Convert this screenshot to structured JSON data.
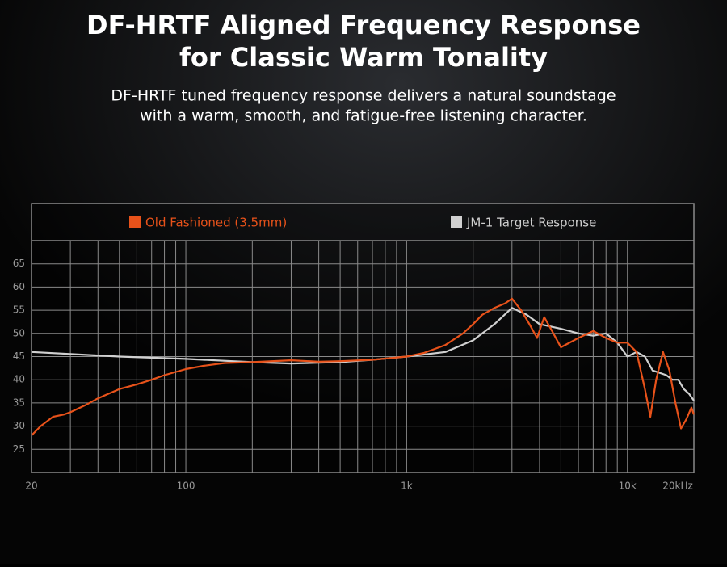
{
  "title": "DF-HRTF Aligned Frequency Response",
  "title_line2": "for Classic Warm Tonality",
  "subtitle": "DF-HRTF tuned frequency response delivers a natural soundstage",
  "subtitle_line2": "with a warm, smooth, and fatigue-free listening character.",
  "chart_data": {
    "type": "line",
    "log_x": true,
    "grid": true,
    "xlim": [
      20,
      20000
    ],
    "ylim": [
      20,
      70
    ],
    "xticks": [
      20,
      100,
      {
        "value": 1000,
        "label": "1k"
      },
      {
        "value": 10000,
        "label": "10k"
      },
      {
        "value": 20000,
        "label": "20kHz"
      }
    ],
    "x_minor_ticks": [
      30,
      40,
      50,
      60,
      70,
      80,
      90,
      200,
      300,
      400,
      500,
      600,
      700,
      800,
      900,
      2000,
      3000,
      4000,
      5000,
      6000,
      7000,
      8000,
      9000
    ],
    "yticks": [
      25,
      30,
      35,
      40,
      45,
      50,
      55,
      60,
      65
    ],
    "series": [
      {
        "name": "Old Fashioned (3.5mm)",
        "color": "#e8521a",
        "x": [
          20,
          22,
          25,
          28,
          30,
          35,
          40,
          50,
          60,
          70,
          80,
          100,
          120,
          150,
          200,
          300,
          400,
          500,
          700,
          1000,
          1200,
          1500,
          1800,
          2000,
          2200,
          2500,
          2800,
          3000,
          3300,
          3600,
          3900,
          4200,
          4500,
          5000,
          6000,
          7000,
          8000,
          9000,
          10000,
          11000,
          12000,
          12700,
          13500,
          14500,
          15500,
          16500,
          17500,
          18500,
          19500,
          20000
        ],
        "values": [
          28,
          30,
          32,
          32.5,
          33,
          34.5,
          36,
          38,
          39,
          40,
          41,
          42.3,
          43,
          43.6,
          43.8,
          44.2,
          43.9,
          44,
          44.3,
          45,
          45.8,
          47.5,
          50,
          52,
          54,
          55.5,
          56.5,
          57.5,
          55,
          52,
          49,
          53.5,
          51,
          47,
          49,
          50.5,
          49,
          48,
          48,
          46,
          38,
          32,
          40,
          46,
          42,
          35,
          29.5,
          31.5,
          34,
          32.5
        ]
      },
      {
        "name": "JM-1 Target Response",
        "color": "#d0d0d0",
        "x": [
          20,
          50,
          100,
          200,
          300,
          500,
          700,
          1000,
          1500,
          2000,
          2500,
          3000,
          3500,
          4000,
          5000,
          6000,
          7000,
          8000,
          9000,
          10000,
          11000,
          12000,
          13000,
          15000,
          16000,
          17000,
          18000,
          19000,
          20000
        ],
        "values": [
          46,
          45,
          44.5,
          43.8,
          43.5,
          43.8,
          44.3,
          45,
          46,
          48.5,
          52,
          55.5,
          54,
          52,
          51,
          50,
          49.5,
          50,
          48,
          45,
          46,
          45,
          42,
          41,
          40,
          40,
          38,
          37,
          35.5
        ]
      }
    ]
  }
}
